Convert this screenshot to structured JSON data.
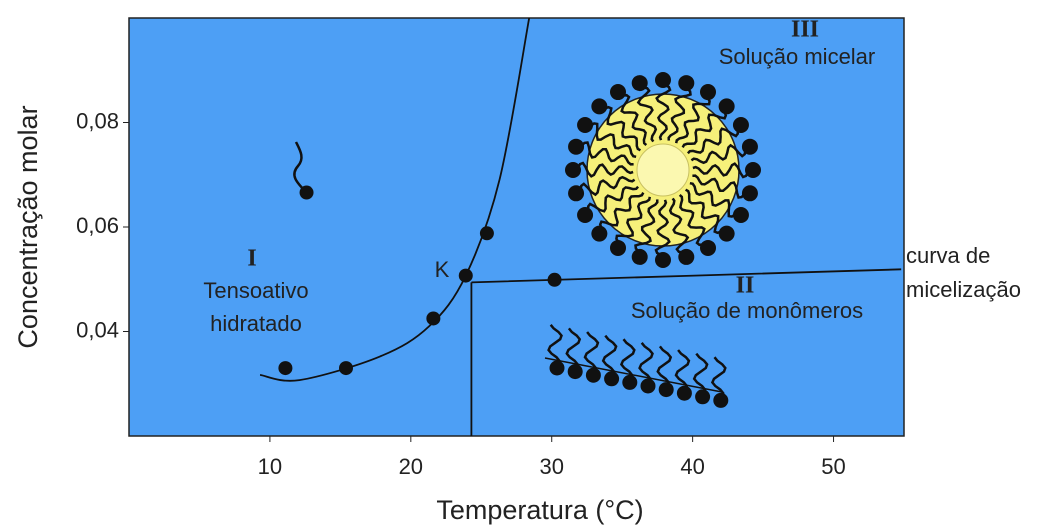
{
  "chart_data": {
    "type": "scatter",
    "x_label": "Temperatura (°C)",
    "y_label": "Concentração molar",
    "xlim": [
      0,
      55
    ],
    "xticks": [
      10,
      20,
      30,
      40,
      50
    ],
    "ylim": [
      0.02,
      0.1
    ],
    "yticks": [
      {
        "value": 0.04,
        "label": "0,04"
      },
      {
        "value": 0.06,
        "label": "0,06"
      },
      {
        "value": 0.08,
        "label": "0,08"
      }
    ],
    "background": "#4d9ff5",
    "point_color": "#111111",
    "points": {
      "x": [
        11.1,
        15.4,
        21.6,
        23.9,
        25.4,
        30.2,
        12.6
      ],
      "y": [
        0.033,
        0.033,
        0.0425,
        0.0507,
        0.0588,
        0.0499,
        0.0666
      ]
    },
    "lines": [
      {
        "x": [
          9.3,
          12.1,
          17.8,
          21.3,
          23.9,
          26.3,
          28.4
        ],
        "y": [
          0.0317,
          0.0307,
          0.0352,
          0.041,
          0.0507,
          0.0691,
          0.1
        ]
      },
      {
        "x": [
          24.3,
          54.8
        ],
        "y": [
          0.0494,
          0.0519
        ]
      },
      {
        "x": [
          24.3,
          24.3
        ],
        "y": [
          0.0494,
          0.02
        ]
      }
    ],
    "annotations": {
      "region_3": "III",
      "micellar": "Solução micelar",
      "region_2": "II",
      "monomers": "Solução de monômeros",
      "region_1": "I",
      "hydrated_1": "Tensoativo",
      "hydrated_2": "hidratado",
      "krafft": "K",
      "curve_1": "curva de",
      "curve_2": "micelização"
    }
  }
}
